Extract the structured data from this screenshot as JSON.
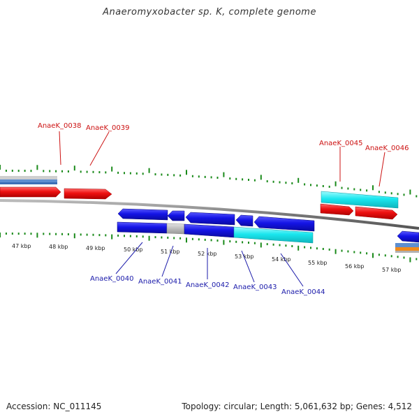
{
  "title": "Anaeromyxobacter sp. K, complete genome",
  "footer": {
    "accession": "Accession: NC_011145",
    "summary": "Topology: circular; Length: 5,061,632 bp; Genes: 4,512"
  },
  "colors": {
    "forward_gene": "#e01010",
    "reverse_gene": "#1515e0",
    "highlight": "#18e0e8",
    "hypothetical": "#b0b0b0",
    "tick": "#1a8a1a",
    "backbone": "#888888"
  },
  "ticks": [
    {
      "label": "47 kbp"
    },
    {
      "label": "48 kbp"
    },
    {
      "label": "49 kbp"
    },
    {
      "label": "50 kbp"
    },
    {
      "label": "51 kbp"
    },
    {
      "label": "52 kbp"
    },
    {
      "label": "53 kbp"
    },
    {
      "label": "54 kbp"
    },
    {
      "label": "55 kbp"
    },
    {
      "label": "56 kbp"
    },
    {
      "label": "57 kbp"
    }
  ],
  "labels_top": [
    {
      "text": "AnaeK_0038"
    },
    {
      "text": "AnaeK_0039"
    },
    {
      "text": "AnaeK_0045"
    },
    {
      "text": "AnaeK_0046"
    }
  ],
  "labels_bottom": [
    {
      "text": "AnaeK_0040"
    },
    {
      "text": "AnaeK_0041"
    },
    {
      "text": "AnaeK_0042"
    },
    {
      "text": "AnaeK_0043"
    },
    {
      "text": "AnaeK_0044"
    }
  ]
}
